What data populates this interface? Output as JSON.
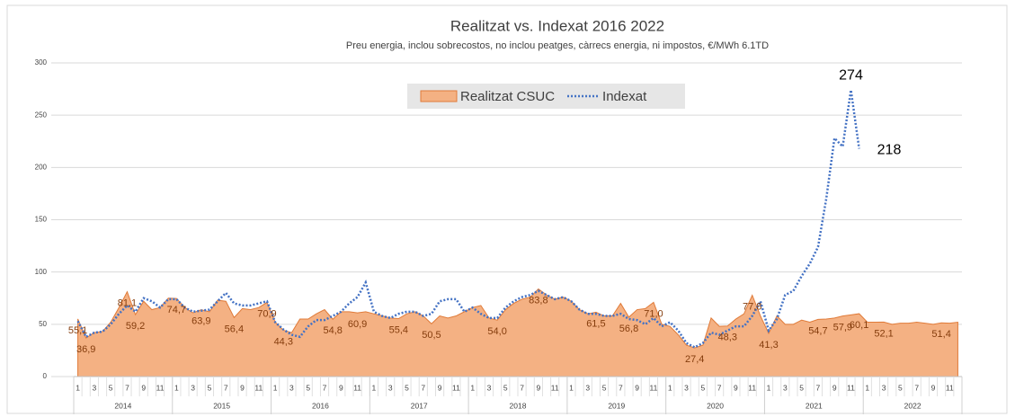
{
  "chart_data": {
    "type": "area_line",
    "title": "Realitzat vs. Indexat 2016 2022",
    "subtitle": "Preu energia, inclou sobrecostos, no inclou peatges, càrrecs energia, ni impostos, €/MWh 6.1TD",
    "categories": [
      "1",
      null,
      "3",
      null,
      "5",
      null,
      "7",
      null,
      "9",
      null,
      "11",
      null,
      "1",
      null,
      "3",
      null,
      "5",
      null,
      "7",
      null,
      "9",
      null,
      "11",
      null,
      "1",
      null,
      "3",
      null,
      "5",
      null,
      "7",
      null,
      "9",
      null,
      "11",
      null,
      "1",
      null,
      "3",
      null,
      "5",
      null,
      "7",
      null,
      "9",
      null,
      "11",
      null,
      "1",
      null,
      "3",
      null,
      "5",
      null,
      "7",
      null,
      "9",
      null,
      "11",
      null,
      "1",
      null,
      "3",
      null,
      "5",
      null,
      "7",
      null,
      "9",
      null,
      "11",
      null,
      "1",
      null,
      "3",
      null,
      "5",
      null,
      "7",
      null,
      "9",
      null,
      "11",
      null,
      "1",
      null,
      "3",
      null,
      "5",
      null,
      "7",
      null,
      "9",
      null,
      "11",
      null,
      "1",
      null,
      "3",
      null,
      "5",
      null,
      "7",
      null,
      "9",
      null,
      "11",
      null
    ],
    "years": [
      "2014",
      "2015",
      "2016",
      "2017",
      "2018",
      "2019",
      "2020",
      "2021",
      "2022"
    ],
    "series": [
      {
        "name": "Realitzat CSUC",
        "kind": "area",
        "color": "#f4b183",
        "edge": "#e07b39",
        "values": [
          55.1,
          36.9,
          42,
          43,
          52,
          66,
          81.1,
          59.2,
          72,
          64,
          66,
          75,
          74.7,
          66,
          61,
          63.9,
          62,
          73,
          72,
          56.4,
          65,
          64,
          66,
          70.9,
          52,
          44.3,
          42,
          55,
          55,
          60,
          64,
          54.8,
          62,
          62,
          60.9,
          62,
          60,
          58,
          56,
          55.4,
          60,
          62,
          58,
          50.5,
          58,
          56,
          58,
          62,
          66,
          68,
          56,
          54.0,
          64,
          70,
          74,
          76,
          83.8,
          78,
          74,
          76,
          72,
          64,
          60,
          61.5,
          58,
          58,
          70,
          56.8,
          64,
          65,
          71.0,
          50,
          48,
          40,
          30,
          27.4,
          30,
          56,
          48,
          48.3,
          55,
          60,
          77.8,
          58,
          41.3,
          58,
          50,
          50,
          54,
          52,
          54.7,
          55,
          56,
          57.9,
          59,
          60.1,
          52,
          52,
          52.1,
          50,
          51,
          51,
          52,
          51,
          50,
          51.4,
          51,
          52
        ],
        "value_labels": [
          "55,1",
          "36,9",
          null,
          null,
          null,
          null,
          "81,1",
          "59,2",
          null,
          null,
          null,
          null,
          "74,7",
          null,
          null,
          "63,9",
          null,
          null,
          null,
          "56,4",
          null,
          null,
          null,
          "70,9",
          null,
          "44,3",
          null,
          null,
          null,
          null,
          null,
          "54,8",
          null,
          null,
          "60,9",
          null,
          null,
          null,
          null,
          "55,4",
          null,
          null,
          null,
          "50,5",
          null,
          null,
          null,
          null,
          null,
          null,
          null,
          "54,0",
          null,
          null,
          null,
          null,
          "83,8",
          null,
          null,
          null,
          null,
          null,
          null,
          "61,5",
          null,
          null,
          null,
          "56,8",
          null,
          null,
          "71,0",
          null,
          null,
          null,
          null,
          "27,4",
          null,
          null,
          null,
          "48,3",
          null,
          null,
          "77,8",
          null,
          "41,3",
          null,
          null,
          null,
          null,
          null,
          "54,7",
          null,
          null,
          "57,9",
          null,
          "60,1",
          null,
          null,
          "52,1",
          null,
          null,
          null,
          null,
          null,
          null,
          "51,4",
          null,
          null
        ]
      },
      {
        "name": "Indexat",
        "kind": "line",
        "color": "#4472c4",
        "values": [
          53,
          38,
          42,
          43,
          50,
          60,
          68,
          62,
          75,
          72,
          66,
          74,
          74,
          66,
          62,
          63,
          64,
          72,
          80,
          70,
          68,
          68,
          70,
          72,
          52,
          45,
          40,
          38,
          48,
          54,
          54,
          58,
          62,
          70,
          76,
          90,
          62,
          58,
          56,
          60,
          62,
          62,
          58,
          60,
          72,
          74,
          74,
          62,
          66,
          60,
          56,
          56,
          66,
          72,
          76,
          78,
          82,
          78,
          74,
          76,
          72,
          64,
          60,
          60,
          58,
          58,
          60,
          55,
          54,
          50,
          56,
          48,
          52,
          44,
          32,
          28,
          32,
          42,
          40,
          44,
          48,
          48,
          58,
          72,
          44,
          55,
          78,
          82,
          96,
          108,
          124,
          170,
          228,
          220,
          274,
          218,
          null,
          null,
          null,
          null,
          null,
          null,
          null,
          null,
          null,
          null,
          null,
          null
        ],
        "value_labels": [
          null,
          null,
          null,
          null,
          null,
          null,
          null,
          null,
          null,
          null,
          null,
          null,
          null,
          null,
          null,
          null,
          null,
          null,
          null,
          null,
          null,
          null,
          null,
          null,
          null,
          null,
          null,
          null,
          null,
          null,
          null,
          null,
          null,
          null,
          null,
          null,
          null,
          null,
          null,
          null,
          null,
          null,
          null,
          null,
          null,
          null,
          null,
          null,
          null,
          null,
          null,
          null,
          null,
          null,
          null,
          null,
          null,
          null,
          null,
          null,
          null,
          null,
          null,
          null,
          null,
          null,
          null,
          null,
          null,
          null,
          null,
          null,
          null,
          null,
          null,
          null,
          null,
          null,
          null,
          null,
          null,
          null,
          null,
          null,
          null,
          null,
          null,
          null,
          null,
          null,
          null,
          null,
          null,
          null,
          "274",
          "218",
          null,
          null,
          null,
          null,
          null,
          null,
          null,
          null,
          null,
          null,
          null,
          null
        ]
      }
    ],
    "ylim": [
      0,
      300
    ],
    "yticks": [
      0,
      50,
      100,
      150,
      200,
      250,
      300
    ],
    "grid": true,
    "legend": "top"
  }
}
